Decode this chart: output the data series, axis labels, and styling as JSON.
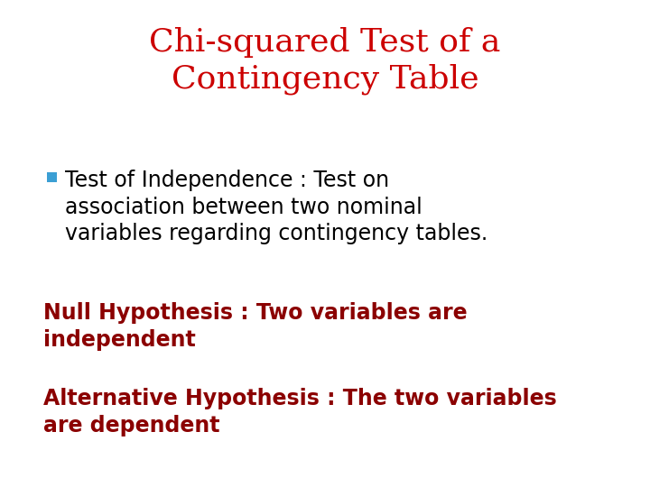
{
  "background_color": "#ffffff",
  "title_line1": "Chi-squared Test of a",
  "title_line2": "Contingency Table",
  "title_color": "#cc0000",
  "title_fontsize": 26,
  "bullet_color": "#3b9fd4",
  "bullet_text_line1": "Test of Independence : Test on",
  "bullet_text_line2": "association between two nominal",
  "bullet_text_line3": "variables regarding contingency tables.",
  "bullet_fontsize": 17,
  "bullet_text_color": "#000000",
  "null_hyp_line1": "Null Hypothesis : Two variables are",
  "null_hyp_line2": "independent",
  "alt_hyp_line1": "Alternative Hypothesis : The two variables",
  "alt_hyp_line2": "are dependent",
  "hyp_color": "#8b0000",
  "hyp_fontsize": 17
}
